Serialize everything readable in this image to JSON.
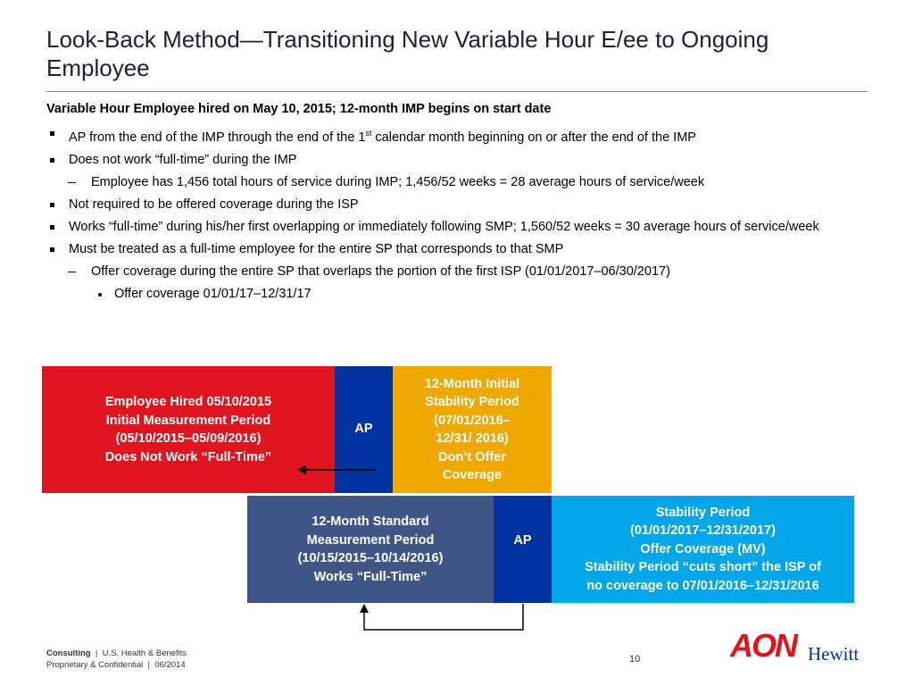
{
  "header": {
    "title_lines": [
      "Look-Back Method—Transitioning New Variable Hour E/ee to Ongoing",
      "Employee"
    ]
  },
  "body": {
    "heading": "Variable Hour Employee hired on May 10, 2015; 12-month IMP begins on start date",
    "bullets": [
      {
        "level": 1,
        "text": "AP from the end of the IMP through the end of the 1",
        "superscript": "st",
        "text_after": " calendar month beginning on or after the end of the IMP"
      },
      {
        "level": 1,
        "text": "Does not work “full-time” during the IMP"
      },
      {
        "level": 2,
        "text": "Employee has 1,456 total hours of service during IMP; 1,456/52 weeks = 28 average hours of service/week"
      },
      {
        "level": 1,
        "text": "Not required to be offered coverage during the ISP"
      },
      {
        "level": 1,
        "text": "Works “full-time” during his/her first overlapping or immediately following SMP; 1,560/52 weeks = 30 average hours of service/week"
      },
      {
        "level": 1,
        "text": "Must be treated as a full-time employee for the entire SP that corresponds to that SMP"
      },
      {
        "level": 2,
        "text": "Offer coverage during the entire SP that overlaps the portion of the first ISP (01/01/2017–06/30/2017)"
      },
      {
        "level": 3,
        "text": "Offer coverage 01/01/17–12/31/17"
      }
    ]
  },
  "diagram": {
    "boxes": [
      {
        "lines": [
          "Employee Hired 05/10/2015",
          "Initial Measurement Period",
          "(05/10/2015–05/09/2016)",
          "Does Not Work “Full-Time”"
        ]
      },
      {
        "lines": [
          "AP"
        ]
      },
      {
        "lines": [
          "12-Month Initial",
          "Stability Period",
          "(07/01/2016–",
          "12/31/ 2016)",
          "Don’t Offer",
          "Coverage"
        ]
      },
      {
        "lines": [
          "12-Month Standard",
          "Measurement Period",
          "(10/15/2015–10/14/2016)",
          "Works “Full-Time”"
        ]
      },
      {
        "lines": [
          "AP"
        ]
      },
      {
        "lines": [
          "Stability Period",
          "(01/01/2017–12/31/2017)",
          "Offer Coverage (MV)",
          "Stability Period “cuts short” the ISP of",
          "no coverage to 07/01/2016–12/31/2016"
        ]
      }
    ]
  },
  "footer": {
    "division": "Consulting",
    "unit": "U.S. Health & Benefits",
    "confidential": "Proprietary & Confidential",
    "date": "06/2014",
    "page": "10",
    "logo_main": "AON",
    "logo_sub": "Hewitt"
  }
}
